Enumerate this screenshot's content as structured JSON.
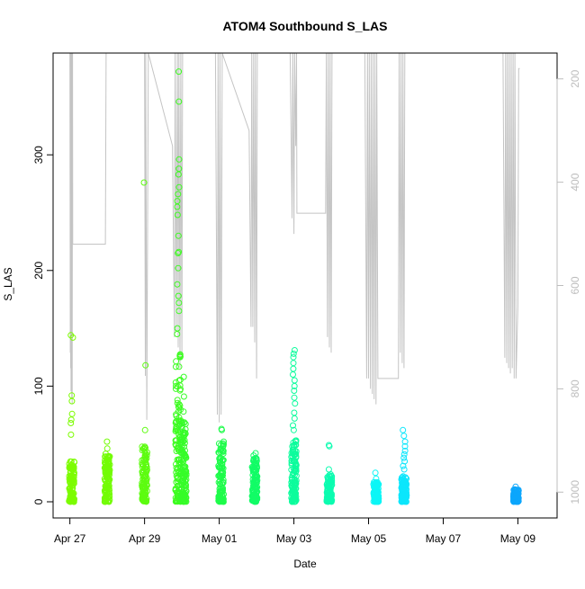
{
  "chart_data": {
    "type": "scatter",
    "title": "ATOM4 Southbound S_LAS",
    "xlabel": "Date",
    "ylabel": "S_LAS",
    "x_ticks": [
      "Apr 27",
      "Apr 29",
      "May 01",
      "May 03",
      "May 05",
      "May 07",
      "May 09"
    ],
    "x_tick_days": [
      0,
      2,
      4,
      6,
      8,
      10,
      12
    ],
    "xlim_days": [
      -0.45,
      13.05
    ],
    "y_ticks": [
      0,
      100,
      200,
      300
    ],
    "ylim": [
      -14,
      388
    ],
    "y2_ticks": [
      200,
      400,
      600,
      800,
      1000
    ],
    "y2lim": [
      1050,
      150
    ],
    "grid": false,
    "legend": "none",
    "point_clusters": [
      {
        "day": 0.05,
        "min": 0,
        "max": 35,
        "extras": [
          58,
          68,
          71,
          76,
          87,
          92,
          142,
          144
        ],
        "color": "#7CFC00"
      },
      {
        "day": 1.0,
        "min": 0,
        "max": 42,
        "extras": [
          46,
          52
        ],
        "color": "#73FC05"
      },
      {
        "day": 2.0,
        "min": 0,
        "max": 48,
        "extras": [
          62,
          118,
          276
        ],
        "color": "#5DFC10"
      },
      {
        "day": 2.9,
        "min": 0,
        "max": 134,
        "extras": [
          145,
          150,
          165,
          172,
          178,
          188,
          202,
          215,
          216,
          230,
          248,
          255,
          260,
          266,
          272,
          283,
          288,
          296,
          346,
          372
        ],
        "color": "#3DFC20"
      },
      {
        "day": 3.05,
        "min": 0,
        "max": 70,
        "extras": [
          78,
          91,
          108
        ],
        "color": "#36FC28"
      },
      {
        "day": 4.05,
        "min": 0,
        "max": 52,
        "extras": [
          62,
          63
        ],
        "color": "#1EFC4A"
      },
      {
        "day": 4.95,
        "min": 0,
        "max": 38,
        "extras": [
          40,
          42
        ],
        "color": "#12FC66"
      },
      {
        "day": 6.0,
        "min": 0,
        "max": 54,
        "extras": [
          62,
          66,
          72,
          77,
          85,
          90,
          96,
          100,
          105,
          110,
          115,
          120,
          125,
          128,
          131
        ],
        "color": "#0CFC9C"
      },
      {
        "day": 6.95,
        "min": 0,
        "max": 24,
        "extras": [
          28,
          48,
          49
        ],
        "color": "#0CFCB0"
      },
      {
        "day": 8.2,
        "min": 0,
        "max": 17,
        "extras": [
          20,
          25
        ],
        "color": "#0CF6F6"
      },
      {
        "day": 8.95,
        "min": 0,
        "max": 22,
        "extras": [
          28,
          31,
          35,
          38,
          41,
          44,
          48,
          52,
          57,
          62
        ],
        "color": "#0CE6FC"
      },
      {
        "day": 11.95,
        "min": 0,
        "max": 11,
        "extras": [
          13
        ],
        "color": "#0CA6FC"
      }
    ],
    "secondary_line": {
      "color": "#c4c4c4",
      "points": [
        [
          0.0,
          150
        ],
        [
          0.01,
          730
        ],
        [
          0.015,
          150
        ],
        [
          0.02,
          760
        ],
        [
          0.025,
          150
        ],
        [
          0.03,
          805
        ],
        [
          0.04,
          150
        ],
        [
          0.05,
          820
        ],
        [
          0.055,
          150
        ],
        [
          0.06,
          830
        ],
        [
          0.07,
          150
        ],
        [
          0.075,
          520
        ],
        [
          0.95,
          520
        ],
        [
          0.97,
          150
        ],
        [
          1.2,
          150
        ],
        [
          1.8,
          150
        ],
        [
          2.0,
          150
        ],
        [
          2.02,
          775
        ],
        [
          2.03,
          150
        ],
        [
          2.06,
          860
        ],
        [
          2.1,
          150
        ],
        [
          2.75,
          330
        ],
        [
          2.8,
          700
        ],
        [
          2.82,
          150
        ],
        [
          2.85,
          690
        ],
        [
          2.88,
          150
        ],
        [
          2.9,
          720
        ],
        [
          2.92,
          150
        ],
        [
          2.95,
          760
        ],
        [
          2.97,
          150
        ],
        [
          3.0,
          740
        ],
        [
          3.02,
          150
        ],
        [
          3.05,
          150
        ],
        [
          3.3,
          150
        ],
        [
          3.4,
          150
        ],
        [
          3.9,
          150
        ],
        [
          3.95,
          850
        ],
        [
          3.97,
          150
        ],
        [
          4.0,
          865
        ],
        [
          4.02,
          150
        ],
        [
          4.05,
          850
        ],
        [
          4.08,
          150
        ],
        [
          4.8,
          300
        ],
        [
          4.85,
          680
        ],
        [
          4.87,
          150
        ],
        [
          4.9,
          680
        ],
        [
          4.92,
          150
        ],
        [
          4.95,
          710
        ],
        [
          4.97,
          150
        ],
        [
          5.0,
          780
        ],
        [
          5.02,
          150
        ],
        [
          5.9,
          150
        ],
        [
          5.95,
          470
        ],
        [
          5.97,
          150
        ],
        [
          6.0,
          500
        ],
        [
          6.02,
          150
        ],
        [
          6.05,
          330
        ],
        [
          6.07,
          150
        ],
        [
          6.08,
          460
        ],
        [
          6.85,
          460
        ],
        [
          6.87,
          150
        ],
        [
          6.9,
          700
        ],
        [
          6.92,
          150
        ],
        [
          6.95,
          720
        ],
        [
          6.97,
          150
        ],
        [
          7.0,
          730
        ],
        [
          7.02,
          150
        ],
        [
          7.05,
          150
        ],
        [
          7.9,
          150
        ],
        [
          7.95,
          780
        ],
        [
          7.97,
          150
        ],
        [
          8.0,
          780
        ],
        [
          8.02,
          150
        ],
        [
          8.05,
          800
        ],
        [
          8.07,
          150
        ],
        [
          8.1,
          810
        ],
        [
          8.12,
          150
        ],
        [
          8.15,
          820
        ],
        [
          8.17,
          150
        ],
        [
          8.2,
          830
        ],
        [
          8.22,
          150
        ],
        [
          8.25,
          780
        ],
        [
          8.8,
          780
        ],
        [
          8.82,
          150
        ],
        [
          8.85,
          730
        ],
        [
          8.87,
          150
        ],
        [
          8.9,
          750
        ],
        [
          8.92,
          150
        ],
        [
          8.95,
          760
        ],
        [
          8.97,
          150
        ],
        [
          9.1,
          150
        ],
        [
          11.2,
          150
        ],
        [
          11.25,
          150
        ],
        [
          11.6,
          150
        ],
        [
          11.65,
          740
        ],
        [
          11.67,
          150
        ],
        [
          11.7,
          750
        ],
        [
          11.72,
          150
        ],
        [
          11.75,
          760
        ],
        [
          11.77,
          150
        ],
        [
          11.8,
          770
        ],
        [
          11.82,
          150
        ],
        [
          11.85,
          760
        ],
        [
          11.87,
          150
        ],
        [
          11.9,
          780
        ],
        [
          11.92,
          150
        ],
        [
          11.95,
          780
        ],
        [
          12.0,
          640
        ],
        [
          12.02,
          180
        ],
        [
          12.05,
          180
        ]
      ]
    }
  }
}
